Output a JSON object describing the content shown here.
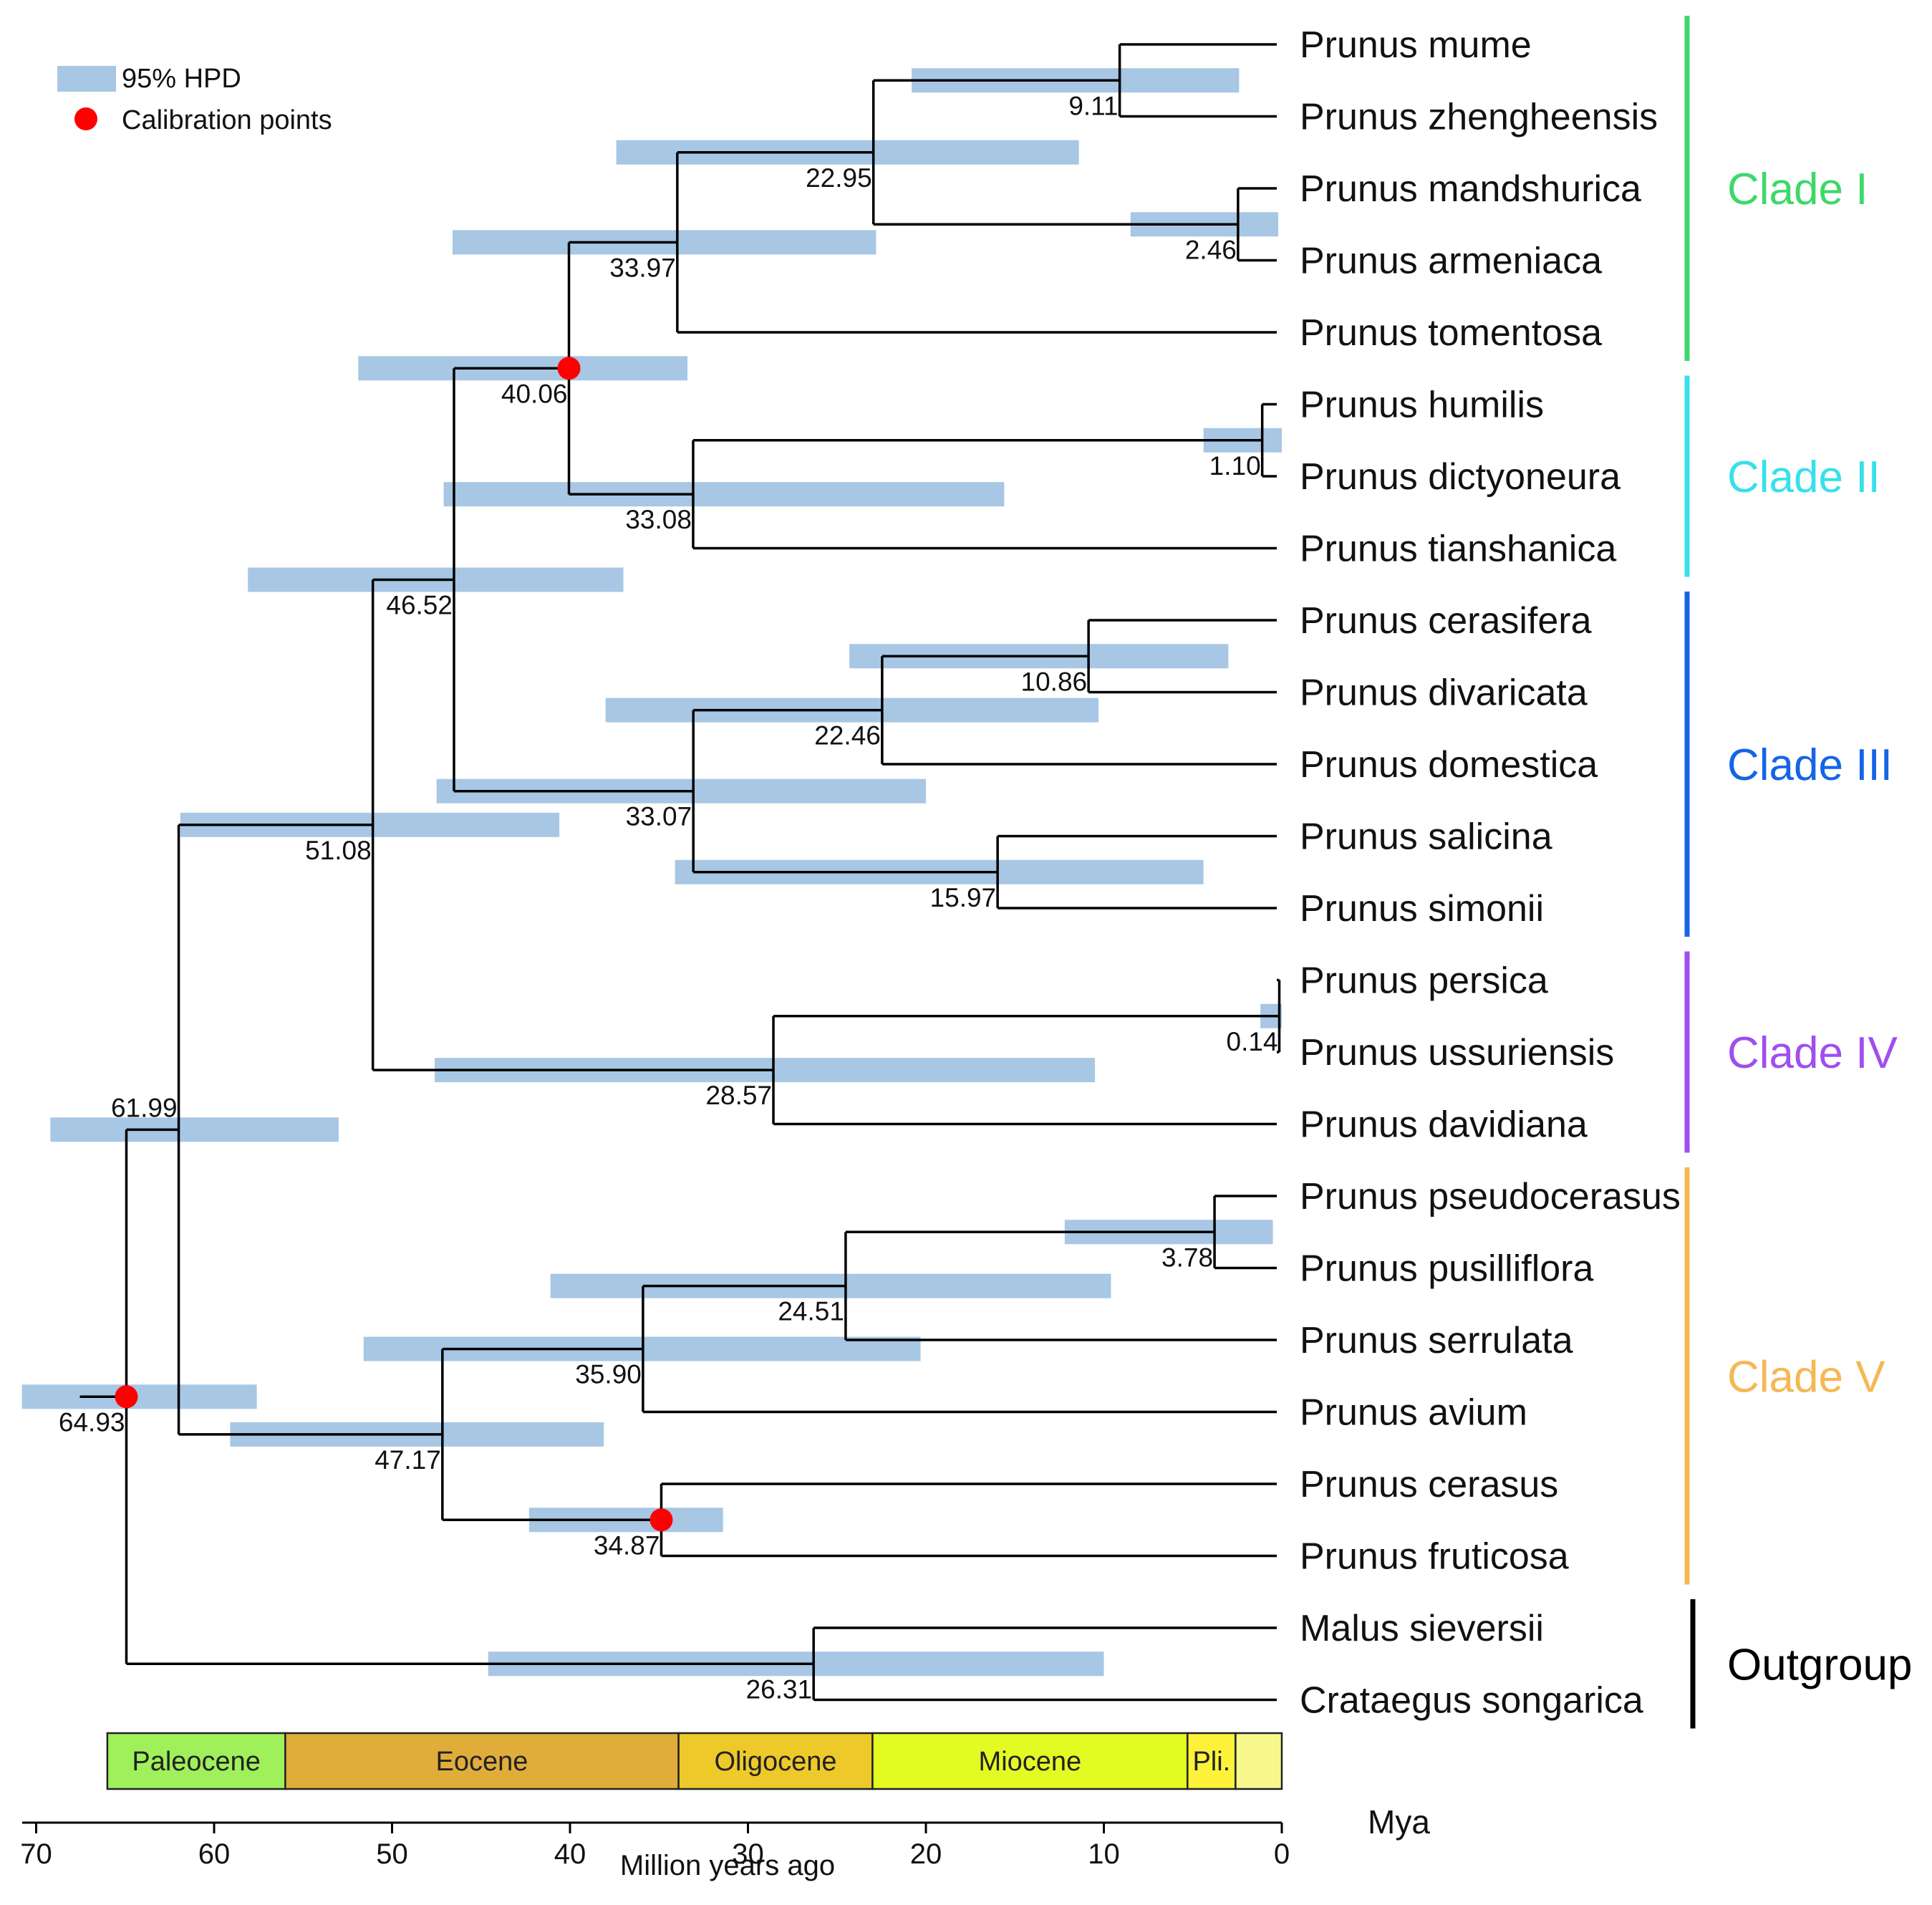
{
  "legend": {
    "hpd_label": "95% HPD",
    "calibration_label": "Calibration points",
    "hpd_color": "#a7c7e4",
    "calibration_color": "#ff0000"
  },
  "tree": {
    "taxa": [
      "Prunus mume",
      "Prunus zhengheensis",
      "Prunus mandshurica",
      "Prunus armeniaca",
      "Prunus tomentosa",
      "Prunus humilis",
      "Prunus dictyoneura",
      "Prunus tianshanica",
      "Prunus cerasifera",
      "Prunus divaricata",
      "Prunus domestica",
      "Prunus salicina",
      "Prunus simonii",
      "Prunus persica",
      "Prunus ussuriensis",
      "Prunus davidiana",
      "Prunus pseudocerasus",
      "Prunus pusilliflora",
      "Prunus serrulata",
      "Prunus avium",
      "Prunus cerasus",
      "Prunus fruticosa",
      "Malus sieversii",
      "Crataegus songarica"
    ],
    "nodes": [
      {
        "id": "root",
        "age": 64.93,
        "label": "64.93",
        "hpd": [
          70.8,
          57.6
        ],
        "calibration": true,
        "children": [
          "n61",
          "n26"
        ]
      },
      {
        "id": "n61",
        "age": 61.99,
        "label": "61.99",
        "hpd": [
          69.2,
          53.0
        ],
        "children": [
          "n51",
          "n47"
        ]
      },
      {
        "id": "n51",
        "age": 51.08,
        "label": "51.08",
        "hpd": [
          61.9,
          40.6
        ],
        "children": [
          "n46",
          "n28"
        ]
      },
      {
        "id": "n46",
        "age": 46.52,
        "label": "46.52",
        "hpd": [
          58.1,
          37.0
        ],
        "children": [
          "n40",
          "n33b"
        ]
      },
      {
        "id": "n40",
        "age": 40.06,
        "label": "40.06",
        "hpd": [
          51.9,
          33.4
        ],
        "calibration": true,
        "children": [
          "n34",
          "n33a"
        ]
      },
      {
        "id": "n34",
        "age": 33.97,
        "label": "33.97",
        "hpd": [
          46.6,
          22.8
        ],
        "children": [
          "n23",
          "t4"
        ]
      },
      {
        "id": "n23",
        "age": 22.95,
        "label": "22.95",
        "hpd": [
          37.4,
          11.4
        ],
        "children": [
          "n9",
          "n2"
        ]
      },
      {
        "id": "n9",
        "age": 9.11,
        "label": "9.11",
        "hpd": [
          20.8,
          2.4
        ],
        "children": [
          "t0",
          "t1"
        ]
      },
      {
        "id": "n2",
        "age": 2.46,
        "label": "2.46",
        "hpd": [
          8.5,
          0.2
        ],
        "children": [
          "t2",
          "t3"
        ]
      },
      {
        "id": "n33a",
        "age": 33.08,
        "label": "33.08",
        "hpd": [
          47.1,
          15.6
        ],
        "children": [
          "n1",
          "t7"
        ]
      },
      {
        "id": "n1",
        "age": 1.1,
        "label": "1.10",
        "hpd": [
          4.4,
          0.0
        ],
        "children": [
          "t5",
          "t6"
        ]
      },
      {
        "id": "n33b",
        "age": 33.07,
        "label": "33.07",
        "hpd": [
          47.5,
          20.0
        ],
        "children": [
          "n22",
          "n16"
        ]
      },
      {
        "id": "n22",
        "age": 22.46,
        "label": "22.46",
        "hpd": [
          38.0,
          10.3
        ],
        "children": [
          "n11",
          "t10"
        ]
      },
      {
        "id": "n11",
        "age": 10.86,
        "label": "10.86",
        "hpd": [
          24.3,
          3.0
        ],
        "children": [
          "t8",
          "t9"
        ]
      },
      {
        "id": "n16",
        "age": 15.97,
        "label": "15.97",
        "hpd": [
          34.1,
          4.4
        ],
        "children": [
          "t11",
          "t12"
        ]
      },
      {
        "id": "n28",
        "age": 28.57,
        "label": "28.57",
        "hpd": [
          47.6,
          10.5
        ],
        "children": [
          "n0",
          "t15"
        ]
      },
      {
        "id": "n0",
        "age": 0.14,
        "label": "0.14",
        "hpd": [
          1.2,
          0.0
        ],
        "children": [
          "t13",
          "t14"
        ]
      },
      {
        "id": "n47",
        "age": 47.17,
        "label": "47.17",
        "hpd": [
          59.1,
          38.1
        ],
        "children": [
          "n36",
          "n35"
        ]
      },
      {
        "id": "n36",
        "age": 35.9,
        "label": "35.90",
        "hpd": [
          51.6,
          20.3
        ],
        "children": [
          "n25",
          "t19"
        ]
      },
      {
        "id": "n25",
        "age": 24.51,
        "label": "24.51",
        "hpd": [
          41.1,
          9.6
        ],
        "children": [
          "n4",
          "t18"
        ]
      },
      {
        "id": "n4",
        "age": 3.78,
        "label": "3.78",
        "hpd": [
          12.2,
          0.5
        ],
        "children": [
          "t16",
          "t17"
        ]
      },
      {
        "id": "n35",
        "age": 34.87,
        "label": "34.87",
        "hpd": [
          42.3,
          31.4
        ],
        "calibration": true,
        "children": [
          "t20",
          "t21"
        ]
      },
      {
        "id": "n26",
        "age": 26.31,
        "label": "26.31",
        "hpd": [
          44.6,
          10.0
        ],
        "children": [
          "t22",
          "t23"
        ]
      }
    ]
  },
  "clades": [
    {
      "name": "Clade I",
      "color": "#3ed86a",
      "first_taxon": 0,
      "last_taxon": 4
    },
    {
      "name": "Clade II",
      "color": "#38e0ea",
      "first_taxon": 5,
      "last_taxon": 7
    },
    {
      "name": "Clade III",
      "color": "#1564e6",
      "first_taxon": 8,
      "last_taxon": 12
    },
    {
      "name": "Clade IV",
      "color": "#a04ef0",
      "first_taxon": 13,
      "last_taxon": 15
    },
    {
      "name": "Clade V",
      "color": "#f5b855",
      "first_taxon": 16,
      "last_taxon": 21
    },
    {
      "name": "Outgroup",
      "color": "#000000",
      "first_taxon": 22,
      "last_taxon": 23
    }
  ],
  "epochs": [
    {
      "name": "Paleocene",
      "start": 66.0,
      "end": 56.0,
      "color": "#9ff05a"
    },
    {
      "name": "Eocene",
      "start": 56.0,
      "end": 33.9,
      "color": "#e0ad3b"
    },
    {
      "name": "Oligocene",
      "start": 33.9,
      "end": 23.0,
      "color": "#eec92a"
    },
    {
      "name": "Miocene",
      "start": 23.0,
      "end": 5.3,
      "color": "#e4fa23"
    },
    {
      "name": "Pli.",
      "start": 5.3,
      "end": 2.6,
      "color": "#fcf23a"
    },
    {
      "name": "",
      "start": 2.6,
      "end": 0.0,
      "color": "#f8f78c"
    }
  ],
  "axis": {
    "ticks": [
      70,
      60,
      50,
      40,
      30,
      20,
      10,
      0
    ],
    "range": [
      70,
      0
    ],
    "title": "Million years ago",
    "unit_label": "Mya"
  }
}
